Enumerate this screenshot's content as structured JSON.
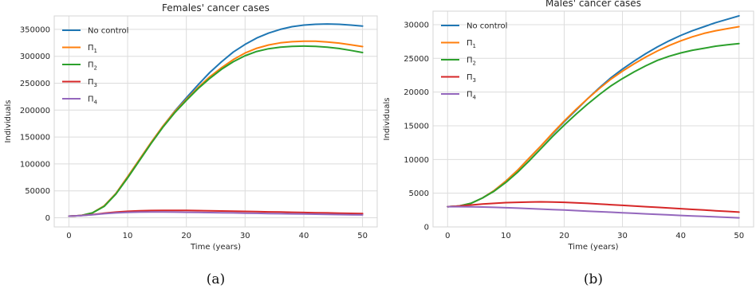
{
  "chart_data": [
    {
      "type": "line",
      "title": "Females' cancer cases",
      "xlabel": "Time (years)",
      "ylabel": "Individuals",
      "subfigure_label": "(a)",
      "xlim": [
        -2.5,
        52.5
      ],
      "ylim": [
        -17000,
        375000
      ],
      "xticks": [
        0,
        10,
        20,
        30,
        40,
        50
      ],
      "yticks": [
        0,
        50000,
        100000,
        150000,
        200000,
        250000,
        300000,
        350000
      ],
      "grid": true,
      "legend_position": "top-left",
      "series": [
        {
          "name": "No control",
          "sub": "",
          "color": "#1f77b4",
          "x": [
            0,
            2,
            4,
            6,
            8,
            10,
            12,
            14,
            16,
            18,
            20,
            22,
            24,
            26,
            28,
            30,
            32,
            34,
            36,
            38,
            40,
            42,
            44,
            46,
            48,
            50
          ],
          "y": [
            3000,
            4000,
            9000,
            22000,
            45000,
            76000,
            108000,
            140000,
            170000,
            198000,
            223000,
            247000,
            270000,
            290000,
            308000,
            322000,
            334000,
            343000,
            350000,
            355000,
            358000,
            359500,
            360000,
            359500,
            358000,
            356000
          ]
        },
        {
          "name": "Π",
          "sub": "1",
          "color": "#ff7f0e",
          "x": [
            0,
            2,
            4,
            6,
            8,
            10,
            12,
            14,
            16,
            18,
            20,
            22,
            24,
            26,
            28,
            30,
            32,
            34,
            36,
            38,
            40,
            42,
            44,
            46,
            48,
            50
          ],
          "y": [
            3000,
            4000,
            9000,
            22000,
            45000,
            76000,
            108000,
            140000,
            170000,
            197000,
            220000,
            242000,
            262000,
            279000,
            294000,
            306000,
            315000,
            321000,
            325000,
            327000,
            328000,
            328000,
            326500,
            324500,
            321500,
            318000
          ]
        },
        {
          "name": "Π",
          "sub": "2",
          "color": "#2ca02c",
          "x": [
            0,
            2,
            4,
            6,
            8,
            10,
            12,
            14,
            16,
            18,
            20,
            22,
            24,
            26,
            28,
            30,
            32,
            34,
            36,
            38,
            40,
            42,
            44,
            46,
            48,
            50
          ],
          "y": [
            3000,
            4000,
            9000,
            21000,
            44000,
            74000,
            106000,
            138000,
            168000,
            195000,
            218000,
            240000,
            259000,
            276000,
            290000,
            301000,
            309000,
            314000,
            317000,
            318500,
            319000,
            318500,
            317000,
            314500,
            311000,
            307000
          ]
        },
        {
          "name": "Π",
          "sub": "3",
          "color": "#d62728",
          "x": [
            0,
            2,
            4,
            6,
            8,
            10,
            12,
            14,
            16,
            18,
            20,
            22,
            24,
            26,
            28,
            30,
            32,
            34,
            36,
            38,
            40,
            42,
            44,
            46,
            48,
            50
          ],
          "y": [
            3000,
            4000,
            6000,
            8500,
            10500,
            12000,
            13000,
            13500,
            13800,
            13800,
            13600,
            13300,
            13000,
            12600,
            12200,
            11800,
            11400,
            11000,
            10600,
            10200,
            9800,
            9400,
            9000,
            8600,
            8200,
            7800
          ]
        },
        {
          "name": "Π",
          "sub": "4",
          "color": "#9467bd",
          "x": [
            0,
            2,
            4,
            6,
            8,
            10,
            12,
            14,
            16,
            18,
            20,
            22,
            24,
            26,
            28,
            30,
            32,
            34,
            36,
            38,
            40,
            42,
            44,
            46,
            48,
            50
          ],
          "y": [
            3000,
            3800,
            5500,
            7500,
            9000,
            10000,
            10500,
            10700,
            10700,
            10500,
            10200,
            9900,
            9600,
            9300,
            9000,
            8600,
            8300,
            7900,
            7600,
            7200,
            6900,
            6600,
            6200,
            5900,
            5600,
            5300
          ]
        }
      ]
    },
    {
      "type": "line",
      "title": "Males' cancer cases",
      "xlabel": "Time (years)",
      "ylabel": "Individuals",
      "subfigure_label": "(b)",
      "xlim": [
        -2.5,
        52.5
      ],
      "ylim": [
        0,
        32000
      ],
      "xticks": [
        0,
        10,
        20,
        30,
        40,
        50
      ],
      "yticks": [
        0,
        5000,
        10000,
        15000,
        20000,
        25000,
        30000
      ],
      "grid": true,
      "legend_position": "top-left",
      "series": [
        {
          "name": "No control",
          "sub": "",
          "color": "#1f77b4",
          "x": [
            0,
            2,
            4,
            6,
            8,
            10,
            12,
            14,
            16,
            18,
            20,
            22,
            24,
            26,
            28,
            30,
            32,
            34,
            36,
            38,
            40,
            42,
            44,
            46,
            48,
            50
          ],
          "y": [
            3000,
            3100,
            3500,
            4300,
            5400,
            6800,
            8400,
            10200,
            12000,
            13800,
            15600,
            17300,
            19000,
            20600,
            22100,
            23400,
            24600,
            25700,
            26700,
            27600,
            28400,
            29100,
            29700,
            30300,
            30800,
            31300
          ]
        },
        {
          "name": "Π",
          "sub": "1",
          "color": "#ff7f0e",
          "x": [
            0,
            2,
            4,
            6,
            8,
            10,
            12,
            14,
            16,
            18,
            20,
            22,
            24,
            26,
            28,
            30,
            32,
            34,
            36,
            38,
            40,
            42,
            44,
            46,
            48,
            50
          ],
          "y": [
            3000,
            3100,
            3500,
            4300,
            5400,
            6800,
            8400,
            10200,
            12000,
            13900,
            15700,
            17400,
            19000,
            20500,
            21900,
            23100,
            24200,
            25200,
            26100,
            26900,
            27600,
            28200,
            28700,
            29100,
            29400,
            29700
          ]
        },
        {
          "name": "Π",
          "sub": "2",
          "color": "#2ca02c",
          "x": [
            0,
            2,
            4,
            6,
            8,
            10,
            12,
            14,
            16,
            18,
            20,
            22,
            24,
            26,
            28,
            30,
            32,
            34,
            36,
            38,
            40,
            42,
            44,
            46,
            48,
            50
          ],
          "y": [
            3000,
            3100,
            3500,
            4300,
            5300,
            6600,
            8100,
            9800,
            11600,
            13400,
            15100,
            16700,
            18200,
            19600,
            20900,
            22000,
            23000,
            23900,
            24700,
            25300,
            25800,
            26200,
            26500,
            26800,
            27000,
            27200
          ]
        },
        {
          "name": "Π",
          "sub": "3",
          "color": "#d62728",
          "x": [
            0,
            2,
            4,
            6,
            8,
            10,
            12,
            14,
            16,
            18,
            20,
            22,
            24,
            26,
            28,
            30,
            32,
            34,
            36,
            38,
            40,
            42,
            44,
            46,
            48,
            50
          ],
          "y": [
            3000,
            3100,
            3250,
            3400,
            3500,
            3600,
            3650,
            3700,
            3720,
            3700,
            3650,
            3580,
            3500,
            3400,
            3300,
            3200,
            3100,
            3000,
            2900,
            2800,
            2700,
            2600,
            2500,
            2400,
            2300,
            2200
          ]
        },
        {
          "name": "Π",
          "sub": "4",
          "color": "#9467bd",
          "x": [
            0,
            2,
            4,
            6,
            8,
            10,
            12,
            14,
            16,
            18,
            20,
            22,
            24,
            26,
            28,
            30,
            32,
            34,
            36,
            38,
            40,
            42,
            44,
            46,
            48,
            50
          ],
          "y": [
            3000,
            3000,
            2980,
            2950,
            2900,
            2850,
            2790,
            2720,
            2650,
            2580,
            2500,
            2420,
            2340,
            2260,
            2180,
            2100,
            2020,
            1940,
            1860,
            1780,
            1700,
            1630,
            1560,
            1490,
            1420,
            1350
          ]
        }
      ]
    }
  ]
}
